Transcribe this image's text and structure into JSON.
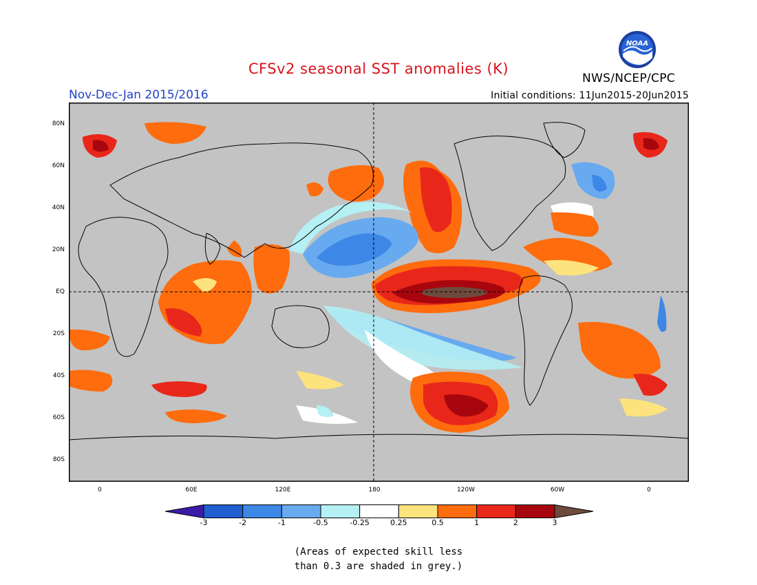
{
  "header": {
    "title": "CFSv2 seasonal SST anomalies (K)",
    "agency": "NWS/NCEP/CPC",
    "season": "Nov-Dec-Jan 2015/2016",
    "initial_conditions": "Initial conditions: 11Jun2015-20Jun2015",
    "logo_icon": "noaa-logo-icon",
    "logo_text": "NOAA"
  },
  "map": {
    "lat_labels": [
      "80N",
      "60N",
      "40N",
      "20N",
      "EQ",
      "20S",
      "40S",
      "60S",
      "80S"
    ],
    "lon_labels": [
      "0",
      "60E",
      "120E",
      "180",
      "120W",
      "60W",
      "0"
    ],
    "background_color": "#c3c3c3"
  },
  "colorbar": {
    "labels": [
      "-3",
      "-2",
      "-1",
      "-0.5",
      "-0.25",
      "0.25",
      "0.5",
      "1",
      "2",
      "3"
    ],
    "colors": [
      "#3c1ba8",
      "#1f5fcf",
      "#3d87e6",
      "#68aaf0",
      "#b4f0f4",
      "#ffffff",
      "#fde37e",
      "#fe6c0d",
      "#e8271a",
      "#a8060e",
      "#6e4a3e"
    ]
  },
  "footnote": {
    "line1": "(Areas of expected skill less",
    "line2": "than 0.3 are shaded in grey.)"
  }
}
